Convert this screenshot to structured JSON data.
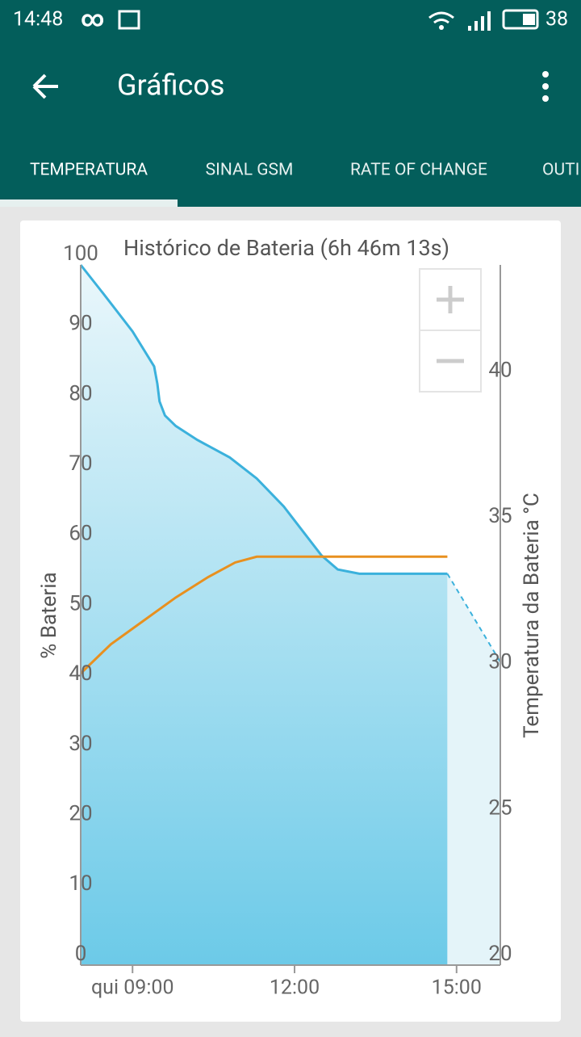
{
  "status_bar": {
    "time": "14:48",
    "battery": "38"
  },
  "app_bar": {
    "title": "Gráficos"
  },
  "tabs": [
    "TEMPERATURA",
    "SINAL GSM",
    "RATE OF CHANGE",
    "OUTI"
  ],
  "chart_data": {
    "type": "line",
    "title": "Histórico de Bateria (6h 46m 13s)",
    "y_label": "% Bateria",
    "y2_label": "Temperatura da Bateria °C",
    "xlim": [
      8.04,
      15.81
    ],
    "xticks": [
      {
        "value": 9,
        "label": "qui 09:00"
      },
      {
        "value": 12,
        "label": "12:00"
      },
      {
        "value": 15,
        "label": "15:00"
      }
    ],
    "ylim": [
      0,
      100
    ],
    "yticks": [
      0,
      10,
      20,
      30,
      40,
      50,
      60,
      70,
      80,
      90,
      100
    ],
    "y2lim": [
      20,
      44
    ],
    "y2ticks": [
      20,
      25,
      30,
      35,
      40
    ],
    "series": [
      {
        "color": "#3bb1dc",
        "area": true,
        "x": [
          8.04,
          8.5,
          9.0,
          9.4,
          9.46,
          9.5,
          9.6,
          9.8,
          10.2,
          10.8,
          11.3,
          11.8,
          12.2,
          12.5,
          12.8,
          13.2,
          14.83
        ],
        "values": [
          100,
          95.5,
          90.5,
          85.5,
          83,
          80.5,
          78.5,
          77,
          75,
          72.5,
          69.5,
          65.5,
          61.5,
          58.5,
          56.5,
          55.9,
          55.9
        ]
      },
      {
        "color": "#3bb1dc",
        "dashed": true,
        "area": true,
        "x": [
          14.83,
          15.81
        ],
        "values": [
          55.9,
          43.3
        ]
      },
      {
        "color": "#e8901f",
        "axis": "y2",
        "x": [
          8.04,
          8.6,
          9.2,
          9.8,
          10.4,
          10.9,
          11.3,
          14.83
        ],
        "values": [
          30.0,
          31.0,
          31.8,
          32.6,
          33.3,
          33.8,
          34.0,
          34.0
        ]
      }
    ]
  }
}
